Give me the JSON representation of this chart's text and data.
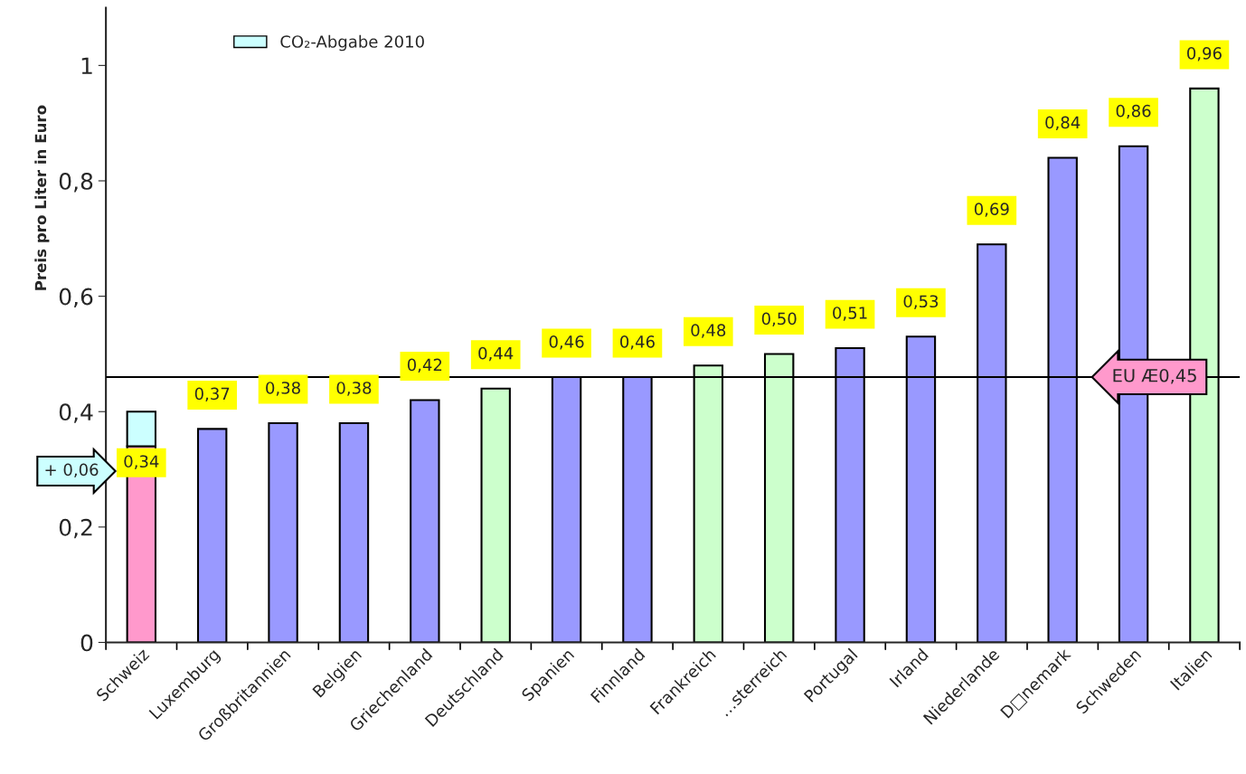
{
  "chart_data": {
    "type": "bar",
    "stacked": true,
    "ylabel": "Preis pro Liter in Euro",
    "categories": [
      "Schweiz",
      "Luxemburg",
      "Großbritannien",
      "Belgien",
      "Griechenland",
      "Deutschland",
      "Spanien",
      "Finnland",
      "Frankreich",
      "…sterreich",
      "Portugal",
      "Irland",
      "Niederlande",
      "D□nemark",
      "Schweden",
      "Italien"
    ],
    "series": [
      {
        "colors": [
          "#ff99cc",
          "#9999ff",
          "#9999ff",
          "#9999ff",
          "#9999ff",
          "#ccffcc",
          "#9999ff",
          "#9999ff",
          "#ccffcc",
          "#ccffcc",
          "#9999ff",
          "#9999ff",
          "#9999ff",
          "#9999ff",
          "#9999ff",
          "#ccffcc"
        ],
        "values": [
          0.34,
          0.37,
          0.38,
          0.38,
          0.42,
          0.44,
          0.46,
          0.46,
          0.48,
          0.5,
          0.51,
          0.53,
          0.69,
          0.84,
          0.86,
          0.96
        ],
        "value_labels": [
          "0,34",
          "0,37",
          "0,38",
          "0,38",
          "0,42",
          "0,44",
          "0,46",
          "0,46",
          "0,48",
          "0,50",
          "0,51",
          "0,53",
          "0,69",
          "0,84",
          "0,86",
          "0,96"
        ]
      },
      {
        "name": "CO₂-Abgabe 2010",
        "color": "#ccffff",
        "values": [
          0.06,
          null,
          null,
          null,
          null,
          null,
          null,
          null,
          null,
          null,
          null,
          null,
          null,
          null,
          null,
          null
        ]
      }
    ],
    "ylim": [
      0,
      1.1
    ],
    "yticks": [
      0,
      {
        "value": 0.2,
        "label": "0,2"
      },
      {
        "value": 0.4,
        "label": "0,4"
      },
      {
        "value": 0.6,
        "label": "0,6"
      },
      {
        "value": 0.8,
        "label": "0,8"
      },
      1
    ],
    "ref_lines": [
      {
        "axis": "y",
        "value": 0.46,
        "label": "EU Æ0,45"
      }
    ],
    "annotations": [
      "+ 0,06"
    ],
    "legend": "top left",
    "grid": false
  }
}
